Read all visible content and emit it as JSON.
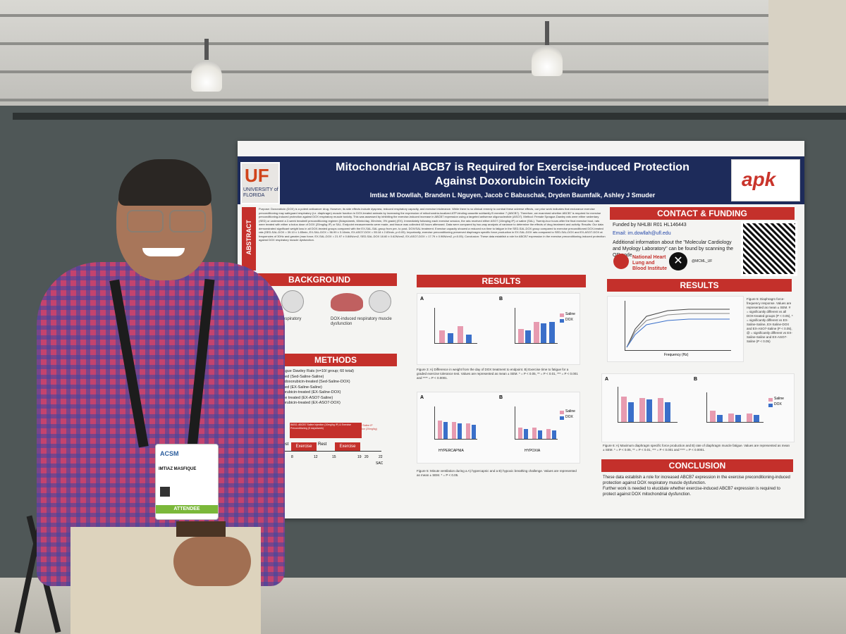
{
  "poster": {
    "title_line1": "Mitochondrial ABCB7 is Required for Exercise-induced Protection",
    "title_line2": "Against Doxorubicin Toxicity",
    "authors": "Imtiaz M Dowllah, Branden L Nguyen, Jacob C Babuschak, Dryden Baumfalk, Ashley J Smuder",
    "uf_logo": "UF",
    "uf_sub": "UNIVERSITY of FLORIDA",
    "apk_logo": "apk",
    "abstract_label": "ABSTRACT",
    "abstract_text": "Purpose: Doxorubicin (DOX) is a potent anticancer drug. However, its side effects include dyspnea, reduced respiratory capacity, and exercise intolerance. While there is no clinical remedy to combat these adverse effects, our prior work indicates that endurance exercise preconditioning may safeguard respiratory (i.e. diaphragm) muscle function in DOX-treated animals by increasing the expression of mitochondria-localized ATP-binding cassette subfamily B member 7 (ABCB7). Therefore, we examined whether ABCB7 is required for exercise preconditioning-induced protection against DOX respiratory muscle toxicity. This was assessed by inhibiting the exercise-induced increase in ABCB7 expression using a targeted antisense oligonucleotide (ASO7). Method: Female Sprague-Dawley rats were either sedentary (SED) or underwent a 2-week treadmill preconditioning regimen (5days/week, 60min/day, 30m/min, 0% grade) (EX). Immediately following each exercise session, the rats received either ASO7 (10mg/kg IP) or saline (SAL). Twenty-four hours after the final exercise bout, rats were treated with either a bolus dose of DOX (20mg/kg IP) or SAL. Endpoint measurements were made, and tissue was collected 48 hours afterward. Data were compared by two-way analysis of variance to determine the effects of drug treatment and activity. Results: Our data demonstrated significant weight loss in all DOX-treated groups compared with the EX-SAL-SAL group from pre- to post- DOX/SAL treatment. Exercise capacity showed a reduced run time to fatigue in the SED-SAL-DOX group compared to exercise preconditioned DOX-treated rats (SED-SAL-DOX = 39.10 ± 1.85min, EX-SAL-DOX = 56.99 ± 3.16min, EX-ASO7-DOX = 55.18 ± 2.83min, p<0.05). Importantly, exercise preconditioning preserved diaphragm specific force production in EX-SAL-DOX rats compared to SED-SAL-DOX and EX-ASO7-DOX at frequencies of 30Hz and greater (max force; EX-SAL-DOX = 21.97 ± 0.84N/cm2, SED-SAL-DOX 18.60 ± 0.62N/cm2, EX-ASO7-DOX = 17.79 ± 0.96N/cm2, p<0.05). Conclusion: These data establish a role for ABCB7 expression in the exercise preconditioning-induced protection against DOX respiratory muscle dysfunction.",
    "sections": {
      "background": "BACKGROUND",
      "methods": "METHODS",
      "results_center": "RESULTS",
      "contact": "CONTACT & FUNDING",
      "results_right": "RESULTS",
      "conclusion": "CONCLUSION"
    },
    "background_captions": [
      "↓ reduced respiratory",
      "DOX-induced respiratory muscle dysfunction"
    ],
    "methods_lines": [
      "Sprague Dawley Rats (n=10/ group; 60 total)",
      "treated (Sed-Saline-Saline)",
      "and doxorubicin-treated (Sed-Saline-DOX)",
      "treated (EX-Saline-Saline)",
      "doxorubicin-treated (EX-Saline-DOX)",
      "saline treated (EX-ASO7-Saline)",
      "doxorubicin-treated (EX-ASO7-DOX)"
    ],
    "timeline": {
      "box1": "8ASO, ABCB7 Saline Injection (10mg/kg IP) & Exercise Preconditioning (5 days/week)",
      "box2": "DOX/ Saline IP Injection (20mg/kg)",
      "labels": [
        "Exercise",
        "Rest",
        "Exercise"
      ],
      "ticks": [
        "8",
        "12",
        "15",
        "19",
        "20",
        "22"
      ],
      "end": "SAC",
      "start": "Rest"
    },
    "contact_lines": [
      "Funded by NHLBI R01 HL146443",
      "Email: im.dowllah@ufl.edu",
      "Additional information about the \"Molecular Cardiology and Myology Laboratory\" can be found by scanning the QR code."
    ],
    "nhlbi": "National Heart Lung and Blood Institute",
    "x_handle": "@MCML_UF",
    "fig3_caption": "Figure 3: A) Difference in weight from the day of DOX treatment to endpoint. B) Exercise time to fatigue for a graded exercise tolerance test. Values are represented as mean ± SEM. * = P < 0.05, ** = P < 0.01, *** = P < 0.001 and **** = P < 0.0001.",
    "fig_vent_caption": "Figure 5: Minute ventilation during a A) hypercapnic and a B) hypoxic breathing challenge. Values are represented as mean ± SEM. * = P < 0.05.",
    "fig_ff_caption": "Figure 5: Diaphragm force-frequency response. Values are represented as mean ± SEM. # = significantly different vs all DOX-treated groups (P < 0.05), * = significantly different vs EX-Saline-Saline, EX-Saline-DOX and EX-ASO7-Saline (P < 0.05), @ = significantly different vs EX-Saline-Saline and EX-ASO7-Saline (P < 0.05)",
    "fig6_caption": "Figure 6: A) Maximum diaphragm specific force production and B) rate of diaphragm muscle fatigue. Values are represented as mean ± SEM. * = P < 0.05, ** = P < 0.01, *** = P < 0.001 and **** = P < 0.0001.",
    "legend": [
      "Saline",
      "DOX"
    ],
    "panel_labels": [
      "A",
      "B",
      "A",
      "B",
      "A",
      "B"
    ],
    "axis_labels": {
      "hypercapnia": "HYPERCAPNIA",
      "hypoxia": "HYPOXIA",
      "frequency": "Frequency (Hz)"
    },
    "conclusion_lines": [
      "These data establish a role for increased ABCB7 expression in the exercise preconditioning-induced protection against DOX respiratory muscle dysfunction.",
      "Further work is needed to elucidate whether exercise-induced ABCB7 expression is required to protect against DOX mitochondrial dysfunction."
    ]
  },
  "badge": {
    "org": "ACSM",
    "name": "IMTIAZ MASFIQUE",
    "role": "ATTENDEE"
  },
  "colors": {
    "header": "#1d2b5a",
    "section": "#c4302b",
    "saline_bar": "#e79bb0",
    "dox_bar": "#3a6fc9"
  }
}
